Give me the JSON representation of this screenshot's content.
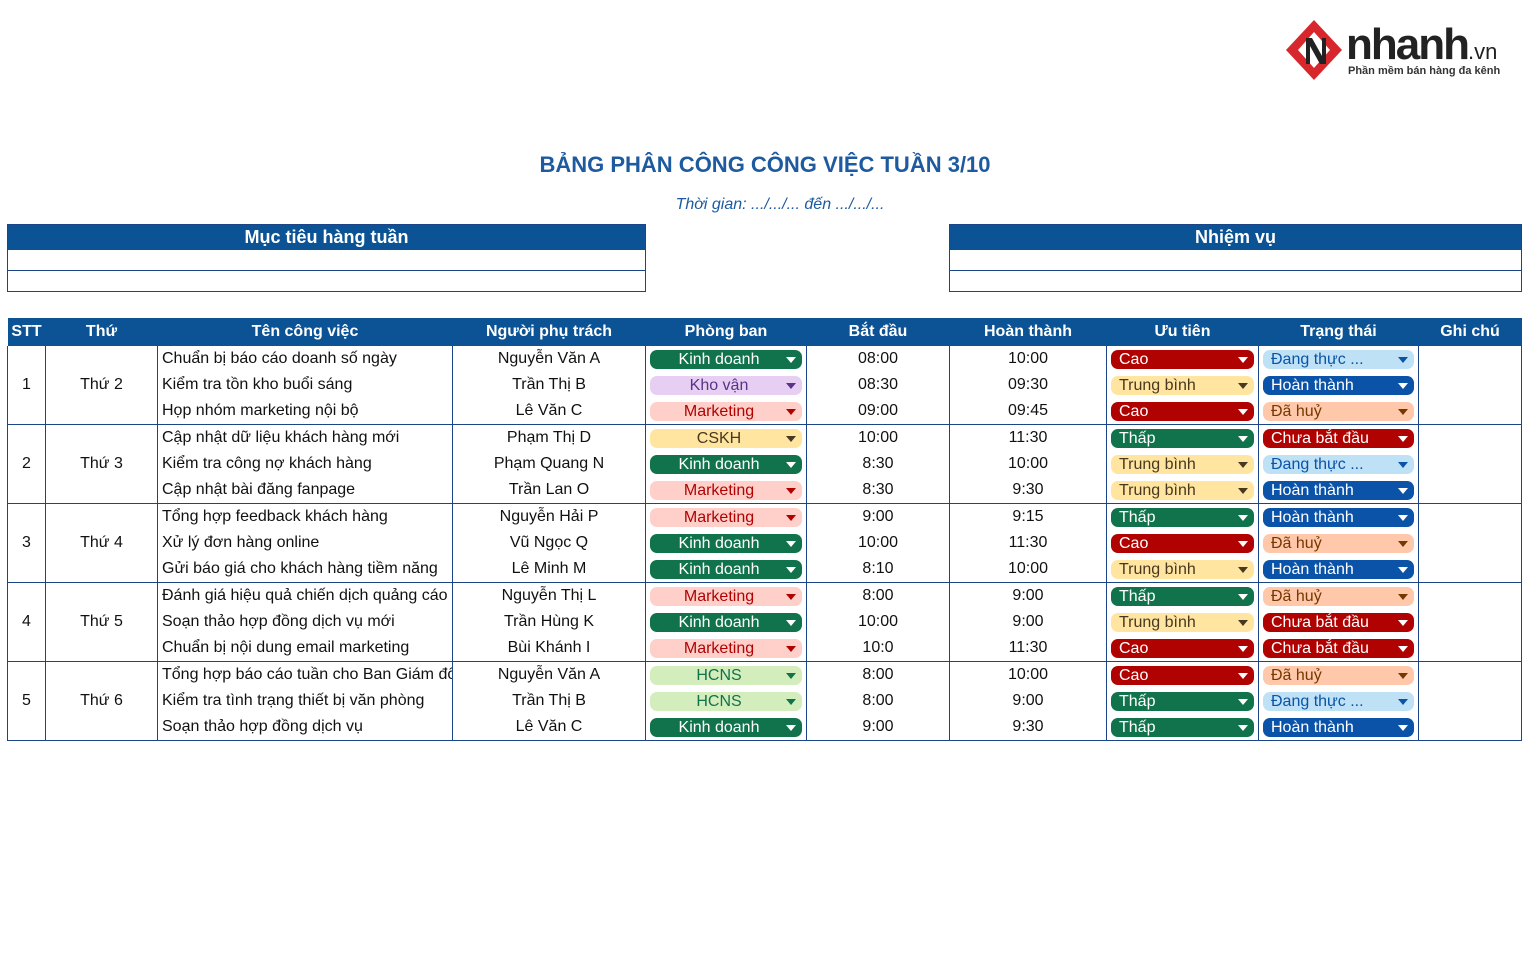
{
  "header": {
    "brand": "nhanh",
    "brand_suffix": ".vn",
    "tagline": "Phần mềm bán hàng đa kênh",
    "title": "BẢNG PHÂN CÔNG CÔNG VIỆC TUẦN 3/10",
    "subtitle": "Thời gian: .../.../... đến .../.../..."
  },
  "boxes": [
    {
      "title": "Mục tiêu hàng tuần"
    },
    {
      "title": "Nhiệm vụ"
    }
  ],
  "chip_colors": {
    "Kinh doanh": [
      "#11734b",
      "#ffffff"
    ],
    "Kho vận": [
      "#e6cff2",
      "#5a3286"
    ],
    "Marketing": [
      "#ffcfc9",
      "#b10202"
    ],
    "CSKH": [
      "#ffe5a0",
      "#473821"
    ],
    "HCNS": [
      "#d4edbc",
      "#11734b"
    ],
    "Cao": [
      "#b10202",
      "#ffffff"
    ],
    "Trung bình": [
      "#ffe5a0",
      "#473821"
    ],
    "Thấp": [
      "#11734b",
      "#ffffff"
    ],
    "Đang thực ...": [
      "#bfe1f6",
      "#0a53a8"
    ],
    "Hoàn thành": [
      "#0a53a8",
      "#ffffff"
    ],
    "Đã huỷ": [
      "#ffc8aa",
      "#753800"
    ],
    "Chưa bắt đầu": [
      "#b10202",
      "#ffffff"
    ]
  },
  "table": {
    "columns": [
      "STT",
      "Thứ",
      "Tên công việc",
      "Người phụ trách",
      "Phòng ban",
      "Bắt đầu",
      "Hoàn thành",
      "Ưu tiên",
      "Trạng thái",
      "Ghi chú"
    ],
    "groups": [
      {
        "stt": "1",
        "day": "Thứ 2",
        "tasks": [
          {
            "name": "Chuẩn bị báo cáo doanh số ngày",
            "owner": "Nguyễn Văn A",
            "dept": "Kinh doanh",
            "start": "08:00",
            "end": "10:00",
            "priority": "Cao",
            "status": "Đang thực ..."
          },
          {
            "name": "Kiểm tra tồn kho buổi sáng",
            "owner": "Trần Thị B",
            "dept": "Kho vận",
            "start": "08:30",
            "end": "09:30",
            "priority": "Trung bình",
            "status": "Hoàn thành"
          },
          {
            "name": "Họp nhóm marketing nội bộ",
            "owner": "Lê Văn C",
            "dept": "Marketing",
            "start": "09:00",
            "end": "09:45",
            "priority": "Cao",
            "status": "Đã huỷ"
          }
        ]
      },
      {
        "stt": "2",
        "day": "Thứ 3",
        "tasks": [
          {
            "name": "Cập nhật dữ liệu khách hàng mới",
            "owner": "Phạm Thị D",
            "dept": "CSKH",
            "start": "10:00",
            "end": "11:30",
            "priority": "Thấp",
            "status": "Chưa bắt đầu"
          },
          {
            "name": "Kiểm tra công nợ khách hàng",
            "owner": "Phạm Quang N",
            "dept": "Kinh doanh",
            "start": "8:30",
            "end": "10:00",
            "priority": "Trung bình",
            "status": "Đang thực ..."
          },
          {
            "name": "Cập nhật bài đăng fanpage",
            "owner": "Trần Lan O",
            "dept": "Marketing",
            "start": "8:30",
            "end": "9:30",
            "priority": "Trung bình",
            "status": "Hoàn thành"
          }
        ]
      },
      {
        "stt": "3",
        "day": "Thứ 4",
        "tasks": [
          {
            "name": "Tổng hợp feedback khách hàng",
            "owner": "Nguyễn Hải P",
            "dept": "Marketing",
            "start": "9:00",
            "end": "9:15",
            "priority": "Thấp",
            "status": "Hoàn thành"
          },
          {
            "name": "Xử lý đơn hàng online",
            "owner": "Vũ Ngọc Q",
            "dept": "Kinh doanh",
            "start": "10:00",
            "end": "11:30",
            "priority": "Cao",
            "status": "Đã huỷ"
          },
          {
            "name": "Gửi báo giá cho khách hàng tiềm năng",
            "owner": "Lê Minh M",
            "dept": "Kinh doanh",
            "start": "8:10",
            "end": "10:00",
            "priority": "Trung bình",
            "status": "Hoàn thành"
          }
        ]
      },
      {
        "stt": "4",
        "day": "Thứ 5",
        "tasks": [
          {
            "name": "Đánh giá hiệu quả chiến dịch quảng cáo",
            "owner": "Nguyễn Thị L",
            "dept": "Marketing",
            "start": "8:00",
            "end": "9:00",
            "priority": "Thấp",
            "status": "Đã huỷ"
          },
          {
            "name": "Soạn thảo hợp đồng dịch vụ mới",
            "owner": "Trần Hùng K",
            "dept": "Kinh doanh",
            "start": "10:00",
            "end": "9:00",
            "priority": "Trung bình",
            "status": "Chưa bắt đầu"
          },
          {
            "name": "Chuẩn bị nội dung email marketing",
            "owner": "Bùi Khánh I",
            "dept": "Marketing",
            "start": "10:0",
            "end": "11:30",
            "priority": "Cao",
            "status": "Chưa bắt đầu"
          }
        ]
      },
      {
        "stt": "5",
        "day": "Thứ 6",
        "tasks": [
          {
            "name": "Tổng hợp báo cáo tuần cho Ban Giám đốc",
            "owner": "Nguyễn Văn A",
            "dept": "HCNS",
            "start": "8:00",
            "end": "10:00",
            "priority": "Cao",
            "status": "Đã huỷ"
          },
          {
            "name": "Kiểm tra tình trạng thiết bị văn phòng",
            "owner": "Trần Thị B",
            "dept": "HCNS",
            "start": "8:00",
            "end": "9:00",
            "priority": "Thấp",
            "status": "Đang thực ..."
          },
          {
            "name": "Soạn thảo hợp đồng dịch vụ",
            "owner": "Lê Văn C",
            "dept": "Kinh doanh",
            "start": "9:00",
            "end": "9:30",
            "priority": "Thấp",
            "status": "Hoàn thành"
          }
        ]
      }
    ]
  }
}
